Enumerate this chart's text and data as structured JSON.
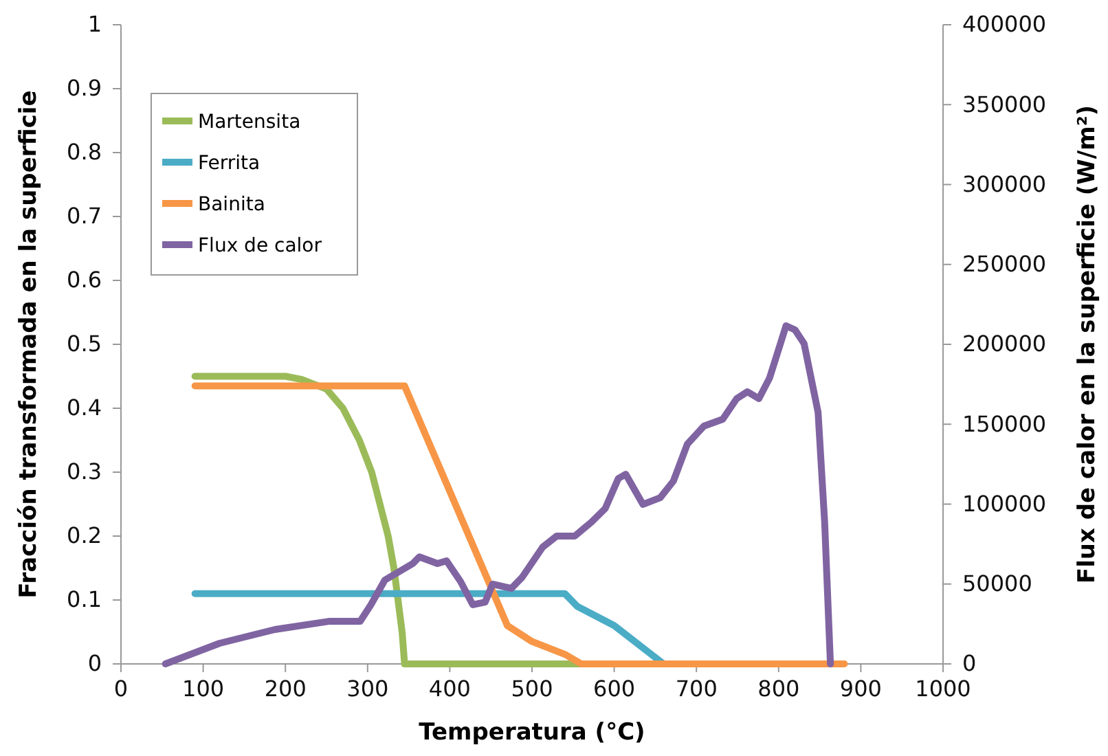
{
  "chart_data": {
    "type": "line",
    "xlabel": "Temperatura (°C)",
    "ylabel": "Fracción transformada en la superficie",
    "y2label": "Flux de calor en la superficie (W/m²)",
    "xlim": [
      0,
      1000
    ],
    "xticks": [
      0,
      100,
      200,
      300,
      400,
      500,
      600,
      700,
      800,
      900,
      1000
    ],
    "ylim": [
      0,
      1
    ],
    "yticks": [
      0,
      0.1,
      0.2,
      0.3,
      0.4,
      0.5,
      0.6,
      0.7,
      0.8,
      0.9,
      1
    ],
    "y2lim": [
      0,
      400000
    ],
    "y2ticks": [
      0,
      50000,
      100000,
      150000,
      200000,
      250000,
      300000,
      350000,
      400000
    ],
    "legend": "top left",
    "marker": "none",
    "line_style": "solid",
    "series": [
      {
        "name": "Martensita",
        "color": "#9bbb59",
        "x": [
          90,
          200,
          220,
          250,
          270,
          290,
          305,
          315,
          325,
          332,
          337,
          342,
          345,
          870
        ],
        "values": [
          0.45,
          0.45,
          0.445,
          0.43,
          0.4,
          0.35,
          0.3,
          0.25,
          0.2,
          0.15,
          0.1,
          0.05,
          0,
          0
        ]
      },
      {
        "name": "Ferrita",
        "color": "#4bacc6",
        "x": [
          90,
          540,
          555,
          600,
          640,
          660,
          870
        ],
        "values": [
          0.11,
          0.11,
          0.09,
          0.06,
          0.02,
          0,
          0
        ]
      },
      {
        "name": "Bainita",
        "color": "#f79646",
        "x": [
          90,
          345,
          450,
          470,
          500,
          540,
          560,
          880
        ],
        "values": [
          0.435,
          0.435,
          0.12,
          0.06,
          0.035,
          0.015,
          0,
          0
        ]
      },
      {
        "name": "Flux de calor",
        "color": "#8064a2",
        "axis": "y2",
        "x": [
          54,
          120,
          187,
          254,
          291,
          304,
          321,
          355,
          363,
          385,
          396,
          413,
          428,
          443,
          452,
          475,
          488,
          513,
          530,
          552,
          572,
          589,
          605,
          614,
          635,
          656,
          672,
          689,
          709,
          732,
          749,
          762,
          776,
          789,
          809,
          820,
          831,
          848,
          856,
          863
        ],
        "values": [
          0,
          12900,
          21500,
          26700,
          26700,
          37000,
          52500,
          62800,
          67000,
          62800,
          64500,
          51600,
          37000,
          38700,
          49900,
          47300,
          54200,
          73100,
          80000,
          80000,
          88600,
          97200,
          116000,
          118700,
          99800,
          104000,
          114400,
          137600,
          148800,
          153100,
          166000,
          170300,
          166000,
          178900,
          211600,
          209000,
          200400,
          157400,
          88600,
          0
        ]
      }
    ]
  }
}
